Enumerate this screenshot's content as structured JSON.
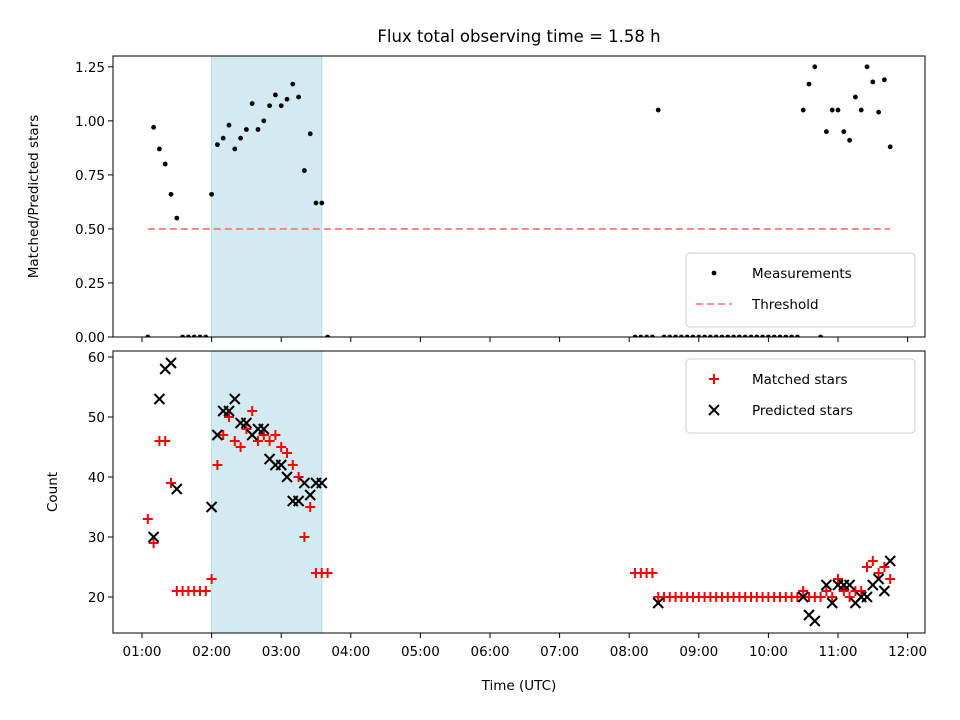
{
  "chart_data": {
    "title": "Flux total observing time = 1.58 h",
    "xlabel": "Time (UTC)",
    "x_ticks": [
      "01:00",
      "02:00",
      "03:00",
      "04:00",
      "05:00",
      "06:00",
      "07:00",
      "08:00",
      "09:00",
      "10:00",
      "11:00",
      "12:00"
    ],
    "xlim": [
      "00:35",
      "12:15"
    ],
    "observing_window": {
      "start": "02:00",
      "end": "03:35",
      "color": "#d3ebf0"
    },
    "panels": [
      {
        "type": "scatter",
        "ylabel": "Matched/Predicted stars",
        "ylim": [
          0,
          1.3
        ],
        "y_ticks": [
          "0.00",
          "0.25",
          "0.50",
          "0.75",
          "1.00",
          "1.25"
        ],
        "legend": {
          "location": "lower right",
          "entries": [
            "Measurements",
            "Threshold"
          ]
        },
        "series": [
          {
            "name": "Measurements",
            "marker": "dot",
            "color": "#000000",
            "points": [
              [
                "01:05",
                0.0
              ],
              [
                "01:10",
                0.97
              ],
              [
                "01:15",
                0.87
              ],
              [
                "01:20",
                0.8
              ],
              [
                "01:25",
                0.66
              ],
              [
                "01:30",
                0.55
              ],
              [
                "01:35",
                0.0
              ],
              [
                "01:40",
                0.0
              ],
              [
                "01:45",
                0.0
              ],
              [
                "01:50",
                0.0
              ],
              [
                "01:55",
                0.0
              ],
              [
                "02:00",
                0.66
              ],
              [
                "02:05",
                0.89
              ],
              [
                "02:10",
                0.92
              ],
              [
                "02:15",
                0.98
              ],
              [
                "02:20",
                0.87
              ],
              [
                "02:25",
                0.92
              ],
              [
                "02:30",
                0.96
              ],
              [
                "02:35",
                1.08
              ],
              [
                "02:40",
                0.96
              ],
              [
                "02:45",
                1.0
              ],
              [
                "02:50",
                1.07
              ],
              [
                "02:55",
                1.12
              ],
              [
                "03:00",
                1.07
              ],
              [
                "03:05",
                1.1
              ],
              [
                "03:10",
                1.17
              ],
              [
                "03:15",
                1.11
              ],
              [
                "03:20",
                0.77
              ],
              [
                "03:25",
                0.94
              ],
              [
                "03:30",
                0.62
              ],
              [
                "03:35",
                0.62
              ],
              [
                "03:40",
                0.0
              ],
              [
                "08:05",
                0.0
              ],
              [
                "08:10",
                0.0
              ],
              [
                "08:15",
                0.0
              ],
              [
                "08:20",
                0.0
              ],
              [
                "08:25",
                1.05
              ],
              [
                "08:30",
                0.0
              ],
              [
                "08:35",
                0.0
              ],
              [
                "08:40",
                0.0
              ],
              [
                "08:45",
                0.0
              ],
              [
                "08:50",
                0.0
              ],
              [
                "08:55",
                0.0
              ],
              [
                "09:00",
                0.0
              ],
              [
                "09:05",
                0.0
              ],
              [
                "09:10",
                0.0
              ],
              [
                "09:15",
                0.0
              ],
              [
                "09:20",
                0.0
              ],
              [
                "09:25",
                0.0
              ],
              [
                "09:30",
                0.0
              ],
              [
                "09:35",
                0.0
              ],
              [
                "09:40",
                0.0
              ],
              [
                "09:45",
                0.0
              ],
              [
                "09:50",
                0.0
              ],
              [
                "09:55",
                0.0
              ],
              [
                "10:00",
                0.0
              ],
              [
                "10:05",
                0.0
              ],
              [
                "10:10",
                0.0
              ],
              [
                "10:15",
                0.0
              ],
              [
                "10:20",
                0.0
              ],
              [
                "10:25",
                0.0
              ],
              [
                "10:30",
                1.05
              ],
              [
                "10:35",
                1.17
              ],
              [
                "10:40",
                1.25
              ],
              [
                "10:45",
                0.0
              ],
              [
                "10:50",
                0.95
              ],
              [
                "10:55",
                1.05
              ],
              [
                "11:00",
                1.05
              ],
              [
                "11:05",
                0.95
              ],
              [
                "11:10",
                0.91
              ],
              [
                "11:15",
                1.11
              ],
              [
                "11:20",
                1.05
              ],
              [
                "11:25",
                1.25
              ],
              [
                "11:30",
                1.18
              ],
              [
                "11:35",
                1.04
              ],
              [
                "11:40",
                1.19
              ],
              [
                "11:45",
                0.88
              ]
            ]
          },
          {
            "name": "Threshold",
            "marker": "dashed-line",
            "color": "#ff7f7f",
            "points": [
              [
                "01:05",
                0.5
              ],
              [
                "11:45",
                0.5
              ]
            ]
          }
        ]
      },
      {
        "type": "scatter",
        "ylabel": "Count",
        "ylim": [
          14,
          61
        ],
        "y_ticks": [
          "20",
          "30",
          "40",
          "50",
          "60"
        ],
        "legend": {
          "location": "upper right",
          "entries": [
            "Matched stars",
            "Predicted stars"
          ]
        },
        "series": [
          {
            "name": "Matched stars",
            "marker": "plus",
            "color": "#ff0000",
            "points": [
              [
                "01:05",
                33
              ],
              [
                "01:10",
                29
              ],
              [
                "01:15",
                46
              ],
              [
                "01:20",
                46
              ],
              [
                "01:25",
                39
              ],
              [
                "01:30",
                21
              ],
              [
                "01:35",
                21
              ],
              [
                "01:40",
                21
              ],
              [
                "01:45",
                21
              ],
              [
                "01:50",
                21
              ],
              [
                "01:55",
                21
              ],
              [
                "02:00",
                23
              ],
              [
                "02:05",
                42
              ],
              [
                "02:10",
                47
              ],
              [
                "02:15",
                50
              ],
              [
                "02:20",
                46
              ],
              [
                "02:25",
                45
              ],
              [
                "02:30",
                48
              ],
              [
                "02:35",
                51
              ],
              [
                "02:40",
                46
              ],
              [
                "02:45",
                47
              ],
              [
                "02:50",
                46
              ],
              [
                "02:55",
                47
              ],
              [
                "03:00",
                45
              ],
              [
                "03:05",
                44
              ],
              [
                "03:10",
                42
              ],
              [
                "03:15",
                40
              ],
              [
                "03:20",
                30
              ],
              [
                "03:25",
                35
              ],
              [
                "03:30",
                24
              ],
              [
                "03:35",
                24
              ],
              [
                "03:40",
                24
              ],
              [
                "08:05",
                24
              ],
              [
                "08:10",
                24
              ],
              [
                "08:15",
                24
              ],
              [
                "08:20",
                24
              ],
              [
                "08:25",
                20
              ],
              [
                "08:30",
                20
              ],
              [
                "08:35",
                20
              ],
              [
                "08:40",
                20
              ],
              [
                "08:45",
                20
              ],
              [
                "08:50",
                20
              ],
              [
                "08:55",
                20
              ],
              [
                "09:00",
                20
              ],
              [
                "09:05",
                20
              ],
              [
                "09:10",
                20
              ],
              [
                "09:15",
                20
              ],
              [
                "09:20",
                20
              ],
              [
                "09:25",
                20
              ],
              [
                "09:30",
                20
              ],
              [
                "09:35",
                20
              ],
              [
                "09:40",
                20
              ],
              [
                "09:45",
                20
              ],
              [
                "09:50",
                20
              ],
              [
                "09:55",
                20
              ],
              [
                "10:00",
                20
              ],
              [
                "10:05",
                20
              ],
              [
                "10:10",
                20
              ],
              [
                "10:15",
                20
              ],
              [
                "10:20",
                20
              ],
              [
                "10:25",
                20
              ],
              [
                "10:30",
                21
              ],
              [
                "10:35",
                20
              ],
              [
                "10:40",
                20
              ],
              [
                "10:45",
                20
              ],
              [
                "10:50",
                21
              ],
              [
                "10:55",
                20
              ],
              [
                "11:00",
                23
              ],
              [
                "11:05",
                21
              ],
              [
                "11:10",
                20
              ],
              [
                "11:15",
                21
              ],
              [
                "11:20",
                21
              ],
              [
                "11:25",
                25
              ],
              [
                "11:30",
                26
              ],
              [
                "11:35",
                24
              ],
              [
                "11:40",
                25
              ],
              [
                "11:45",
                23
              ]
            ]
          },
          {
            "name": "Predicted stars",
            "marker": "x",
            "color": "#000000",
            "points": [
              [
                "01:10",
                30
              ],
              [
                "01:15",
                53
              ],
              [
                "01:20",
                58
              ],
              [
                "01:25",
                59
              ],
              [
                "01:30",
                38
              ],
              [
                "02:00",
                35
              ],
              [
                "02:05",
                47
              ],
              [
                "02:10",
                51
              ],
              [
                "02:15",
                51
              ],
              [
                "02:20",
                53
              ],
              [
                "02:25",
                49
              ],
              [
                "02:30",
                49
              ],
              [
                "02:35",
                47
              ],
              [
                "02:40",
                48
              ],
              [
                "02:45",
                48
              ],
              [
                "02:50",
                43
              ],
              [
                "02:55",
                42
              ],
              [
                "03:00",
                42
              ],
              [
                "03:05",
                40
              ],
              [
                "03:10",
                36
              ],
              [
                "03:15",
                36
              ],
              [
                "03:20",
                39
              ],
              [
                "03:25",
                37
              ],
              [
                "03:30",
                39
              ],
              [
                "03:35",
                39
              ],
              [
                "08:25",
                19
              ],
              [
                "10:30",
                20
              ],
              [
                "10:35",
                17
              ],
              [
                "10:40",
                16
              ],
              [
                "10:50",
                22
              ],
              [
                "10:55",
                19
              ],
              [
                "11:00",
                22
              ],
              [
                "11:05",
                22
              ],
              [
                "11:10",
                22
              ],
              [
                "11:15",
                19
              ],
              [
                "11:20",
                20
              ],
              [
                "11:25",
                20
              ],
              [
                "11:30",
                22
              ],
              [
                "11:35",
                23
              ],
              [
                "11:40",
                21
              ],
              [
                "11:45",
                26
              ]
            ]
          }
        ]
      }
    ]
  }
}
